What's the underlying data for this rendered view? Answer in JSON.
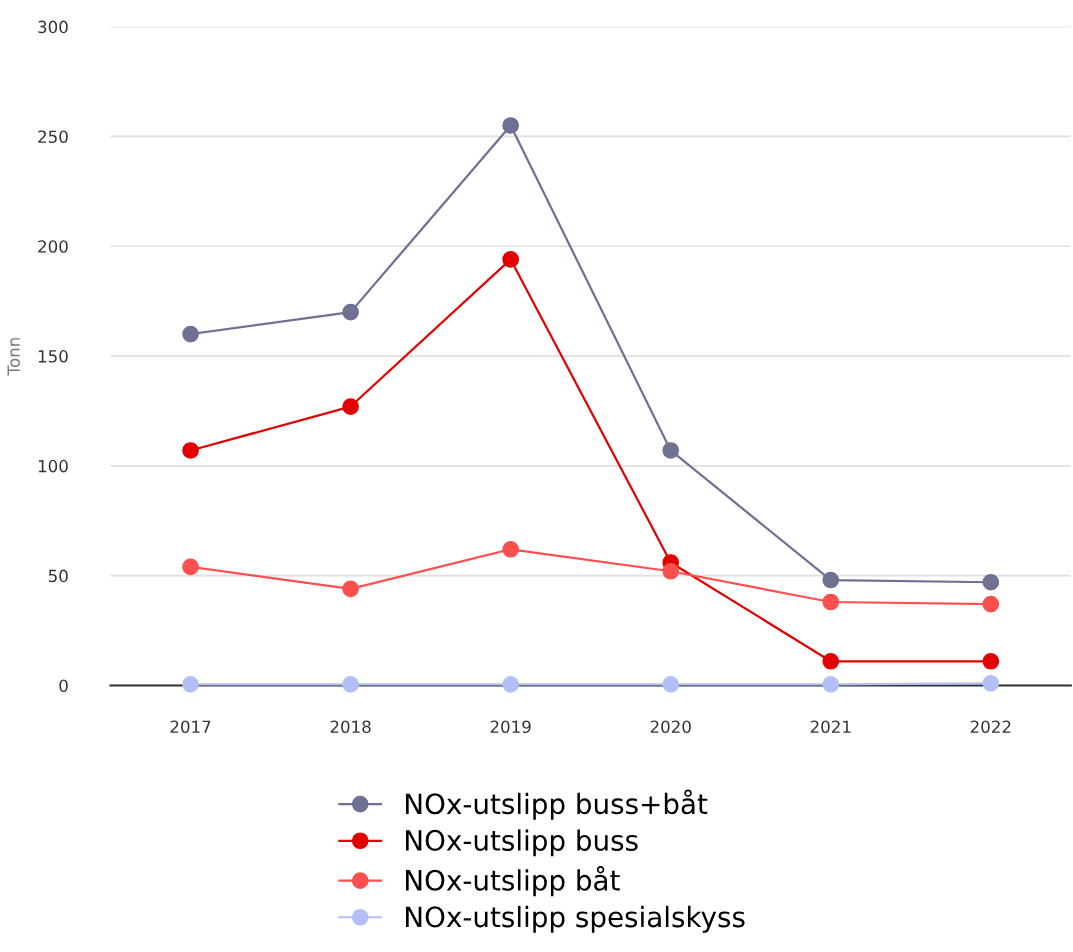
{
  "chart_data": {
    "type": "line",
    "ylabel": "Tonn",
    "categories": [
      "2017",
      "2018",
      "2019",
      "2020",
      "2021",
      "2022"
    ],
    "series": [
      {
        "name": "NOx-utslipp buss+båt",
        "color": "#6e7191",
        "values": [
          160,
          170,
          255,
          107,
          48,
          47
        ]
      },
      {
        "name": "NOx-utslipp buss",
        "color": "#e30000",
        "values": [
          107,
          127,
          194,
          56,
          11,
          11
        ]
      },
      {
        "name": "NOx-utslipp båt",
        "color": "#ff4f4f",
        "values": [
          54,
          44,
          62,
          52,
          38,
          37
        ]
      },
      {
        "name": "NOx-utslipp spesialskyss",
        "color": "#b4bff7",
        "values": [
          0.5,
          0.5,
          0.5,
          0.5,
          0.5,
          1
        ]
      }
    ],
    "ylim": [
      0,
      300
    ],
    "yticks": [
      0,
      50,
      100,
      150,
      200,
      250,
      300
    ],
    "grid": "y",
    "legend": "bottom",
    "marker": "circle",
    "line_style": "solid"
  }
}
